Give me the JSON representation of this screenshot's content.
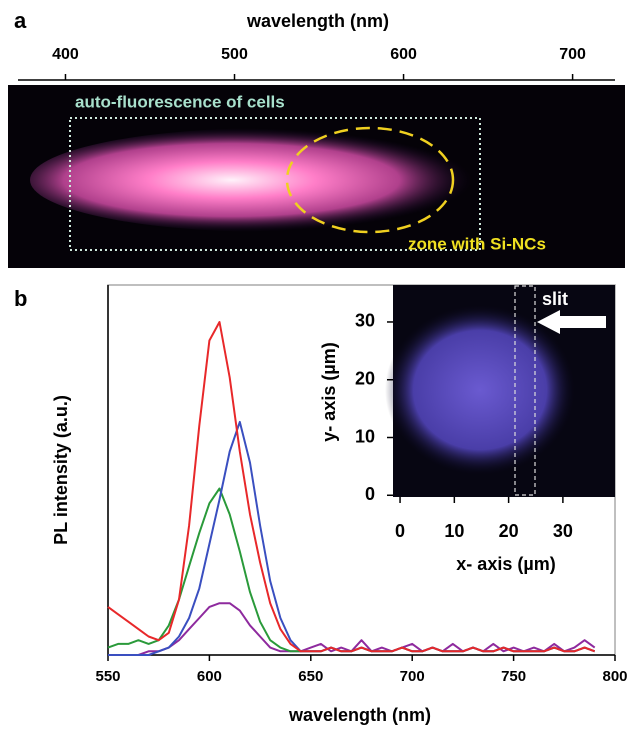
{
  "chart_data": [
    {
      "type": "image",
      "panel_label": "a",
      "xlabel": "wavelength (nm)",
      "xlim": [
        366,
        731
      ],
      "xticks": [
        400,
        500,
        600,
        700
      ],
      "annotations": [
        "auto-fluorescence of cells",
        "zone with Si-NCs"
      ]
    },
    {
      "type": "line",
      "panel_label": "b",
      "xlabel": "wavelength (nm)",
      "ylabel": "PL intensity (a.u.)",
      "xlim": [
        550,
        800
      ],
      "xticks": [
        550,
        600,
        650,
        700,
        750,
        800
      ],
      "ylim": [
        0,
        1
      ],
      "x": [
        550,
        555,
        560,
        565,
        570,
        575,
        580,
        585,
        590,
        595,
        600,
        605,
        610,
        615,
        620,
        625,
        630,
        635,
        640,
        645,
        650,
        655,
        660,
        665,
        670,
        675,
        680,
        685,
        690,
        695,
        700,
        705,
        710,
        715,
        720,
        725,
        730,
        735,
        740,
        745,
        750,
        755,
        760,
        765,
        770,
        775,
        780,
        785,
        790
      ],
      "series": [
        {
          "color": "#8e2a9e",
          "values": [
            0,
            0,
            0,
            0,
            0.01,
            0.01,
            0.02,
            0.04,
            0.07,
            0.1,
            0.13,
            0.14,
            0.14,
            0.12,
            0.08,
            0.05,
            0.02,
            0.01,
            0.01,
            0.01,
            0.02,
            0.03,
            0.01,
            0.02,
            0.01,
            0.04,
            0.01,
            0.02,
            0.01,
            0.02,
            0.03,
            0.01,
            0.02,
            0.01,
            0.03,
            0.01,
            0.02,
            0.01,
            0.03,
            0.01,
            0.02,
            0.01,
            0.02,
            0.01,
            0.03,
            0.01,
            0.02,
            0.04,
            0.02
          ]
        },
        {
          "color": "#2a9a3a",
          "values": [
            0.02,
            0.03,
            0.03,
            0.04,
            0.03,
            0.04,
            0.08,
            0.15,
            0.24,
            0.33,
            0.41,
            0.45,
            0.38,
            0.28,
            0.17,
            0.09,
            0.04,
            0.02,
            0.01,
            0.01,
            0.01,
            0.01,
            0.02,
            0.01,
            0.01,
            0.02,
            0.01,
            0.01,
            0.01,
            0.02,
            0.01,
            0.01,
            0.02,
            0.01,
            0.01,
            0.01,
            0.02,
            0.01,
            0.01,
            0.02,
            0.01,
            0.01,
            0.01,
            0.01,
            0.02,
            0.01,
            0.01,
            0.02,
            0.01
          ]
        },
        {
          "color": "#3a4fc0",
          "values": [
            0,
            0,
            0,
            0,
            0,
            0.01,
            0.02,
            0.05,
            0.1,
            0.18,
            0.3,
            0.42,
            0.55,
            0.63,
            0.52,
            0.35,
            0.2,
            0.1,
            0.04,
            0.01,
            0.01,
            0.01,
            0.02,
            0.01,
            0.01,
            0.02,
            0.01,
            0.01,
            0.01,
            0.02,
            0.01,
            0.01,
            0.02,
            0.01,
            0.01,
            0.01,
            0.02,
            0.01,
            0.01,
            0.02,
            0.01,
            0.01,
            0.01,
            0.01,
            0.02,
            0.01,
            0.01,
            0.02,
            0.01
          ]
        },
        {
          "color": "#e8282a",
          "values": [
            0.13,
            0.11,
            0.09,
            0.07,
            0.05,
            0.04,
            0.06,
            0.15,
            0.35,
            0.62,
            0.85,
            0.9,
            0.75,
            0.55,
            0.38,
            0.25,
            0.14,
            0.07,
            0.03,
            0.01,
            0.01,
            0.01,
            0.02,
            0.01,
            0.01,
            0.02,
            0.01,
            0.01,
            0.01,
            0.02,
            0.01,
            0.01,
            0.02,
            0.01,
            0.01,
            0.01,
            0.02,
            0.01,
            0.01,
            0.02,
            0.01,
            0.01,
            0.01,
            0.01,
            0.02,
            0.01,
            0.01,
            0.02,
            0.01
          ]
        }
      ]
    },
    {
      "type": "image",
      "xlabel": "x- axis (µm)",
      "ylabel": "y- axis (µm)",
      "xlim": [
        -1.3,
        39.6
      ],
      "xticks": [
        0,
        10,
        20,
        30
      ],
      "ylim": [
        -0.3,
        36.4
      ],
      "yticks": [
        0,
        10,
        20,
        30
      ],
      "annotations": [
        "slit"
      ]
    }
  ]
}
